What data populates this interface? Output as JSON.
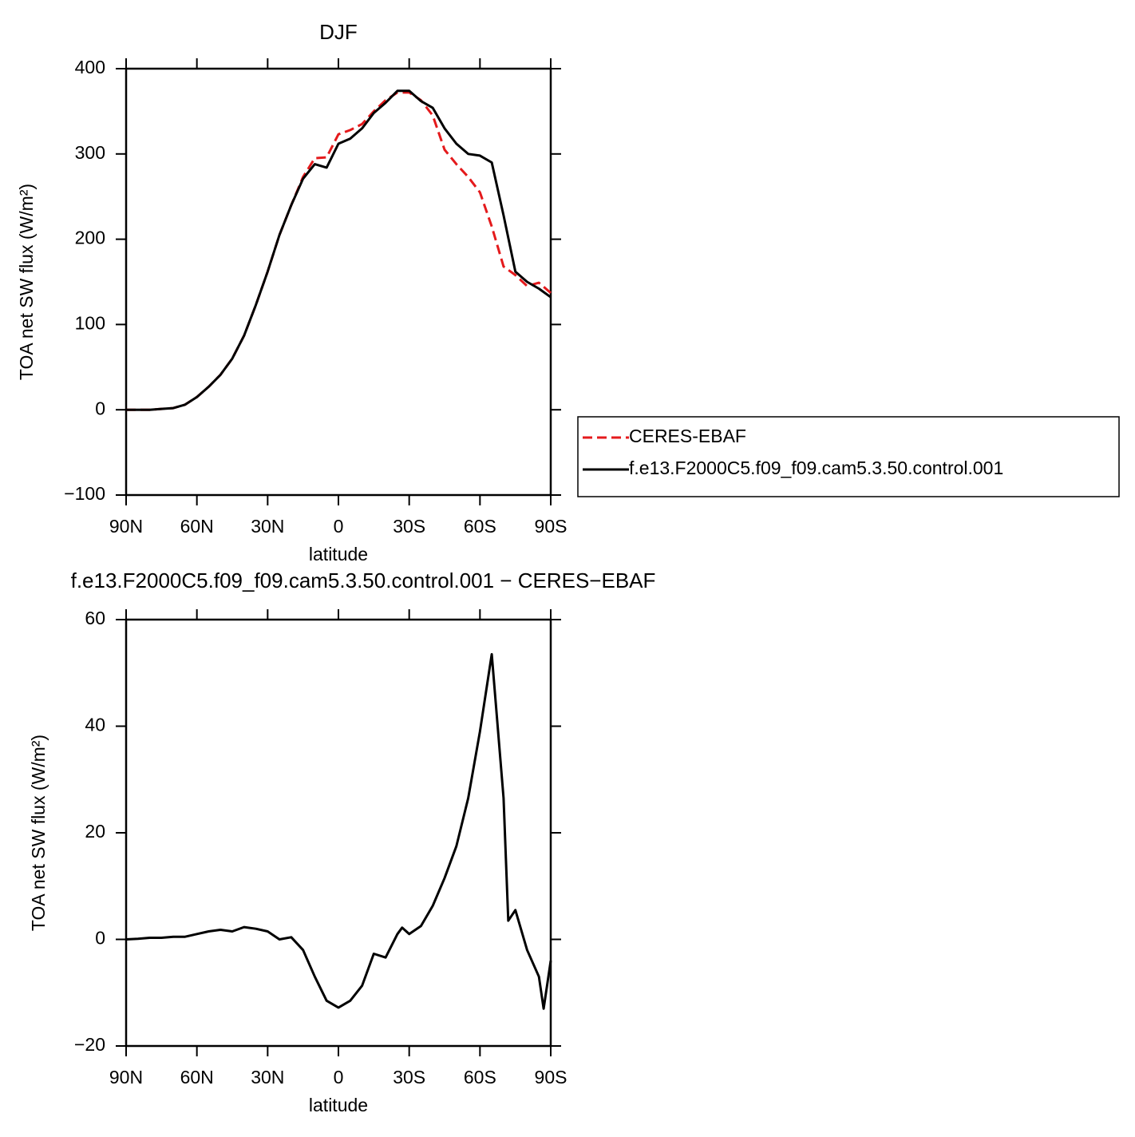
{
  "chart_data": [
    {
      "type": "line",
      "title": "DJF",
      "xlabel": "latitude",
      "ylabel": "TOA net SW flux (W/m²)",
      "x": [
        90,
        85,
        80,
        75,
        70,
        65,
        60,
        55,
        50,
        45,
        40,
        35,
        30,
        25,
        20,
        15,
        10,
        5,
        0,
        -5,
        -10,
        -15,
        -20,
        -25,
        -30,
        -35,
        -40,
        -45,
        -50,
        -55,
        -60,
        -65,
        -70,
        -75,
        -80,
        -85,
        -90
      ],
      "series": [
        {
          "name": "CERES-EBAF",
          "color": "#e41a1c",
          "linestyle": "dashed",
          "values": [
            0,
            0,
            0,
            1,
            2,
            6,
            15,
            27,
            41,
            60,
            87,
            123,
            162,
            205,
            240,
            273,
            295,
            296,
            323,
            328,
            335,
            350,
            363,
            372,
            372,
            363,
            345,
            305,
            288,
            273,
            255,
            215,
            168,
            158,
            145,
            149,
            137
          ]
        },
        {
          "name": "f.e13.F2000C5.f09_f09.cam5.3.50.control.001",
          "color": "#000000",
          "linestyle": "solid",
          "values": [
            0,
            0,
            0,
            1,
            2,
            6,
            15,
            27,
            41,
            60,
            87,
            123,
            162,
            205,
            240,
            271,
            288,
            284,
            312,
            318,
            330,
            348,
            360,
            374,
            374,
            362,
            354,
            330,
            312,
            300,
            298,
            290,
            228,
            162,
            150,
            142,
            132
          ]
        }
      ],
      "xlim": [
        90,
        -90
      ],
      "xticks": [
        {
          "value": 90,
          "label": "90N"
        },
        {
          "value": 60,
          "label": "60N"
        },
        {
          "value": 30,
          "label": "30N"
        },
        0,
        {
          "value": -30,
          "label": "30S"
        },
        {
          "value": -60,
          "label": "60S"
        },
        {
          "value": -90,
          "label": "90S"
        }
      ],
      "ylim": [
        -100,
        400
      ],
      "yticks": [
        {
          "value": -100,
          "label": "−100"
        },
        0,
        100,
        200,
        300,
        400
      ],
      "legend": "right"
    },
    {
      "type": "line",
      "title": "f.e13.F2000C5.f09_f09.cam5.3.50.control.001 − CERES−EBAF",
      "xlabel": "latitude",
      "ylabel": "TOA net SW flux (W/m²)",
      "x": [
        90,
        85,
        80,
        75,
        70,
        65,
        60,
        55,
        50,
        45,
        40,
        35,
        30,
        25,
        20,
        15,
        10,
        5,
        0,
        -5,
        -10,
        -15,
        -20,
        -25,
        -27,
        -30,
        -35,
        -40,
        -45,
        -50,
        -55,
        -60,
        -65,
        -70,
        -72,
        -75,
        -80,
        -85,
        -87,
        -90
      ],
      "color": "#000000",
      "values": [
        0,
        0.1,
        0.3,
        0.3,
        0.5,
        0.5,
        1,
        1.5,
        1.8,
        1.5,
        2.3,
        2,
        1.5,
        0,
        0.4,
        -2,
        -7,
        -11.5,
        -12.8,
        -11.5,
        -8.7,
        -2.7,
        -3.4,
        1,
        2.2,
        1,
        2.5,
        6.3,
        11.5,
        17.5,
        26.5,
        39,
        53.5,
        26.5,
        3.5,
        5.5,
        -2,
        -7,
        -13,
        -4
      ],
      "xlim": [
        90,
        -90
      ],
      "xticks": [
        {
          "value": 90,
          "label": "90N"
        },
        {
          "value": 60,
          "label": "60N"
        },
        {
          "value": 30,
          "label": "30N"
        },
        0,
        {
          "value": -30,
          "label": "30S"
        },
        {
          "value": -60,
          "label": "60S"
        },
        {
          "value": -90,
          "label": "90S"
        }
      ],
      "ylim": [
        -20,
        60
      ],
      "yticks": [
        {
          "value": -20,
          "label": "−20"
        },
        0,
        20,
        40,
        60
      ]
    }
  ]
}
